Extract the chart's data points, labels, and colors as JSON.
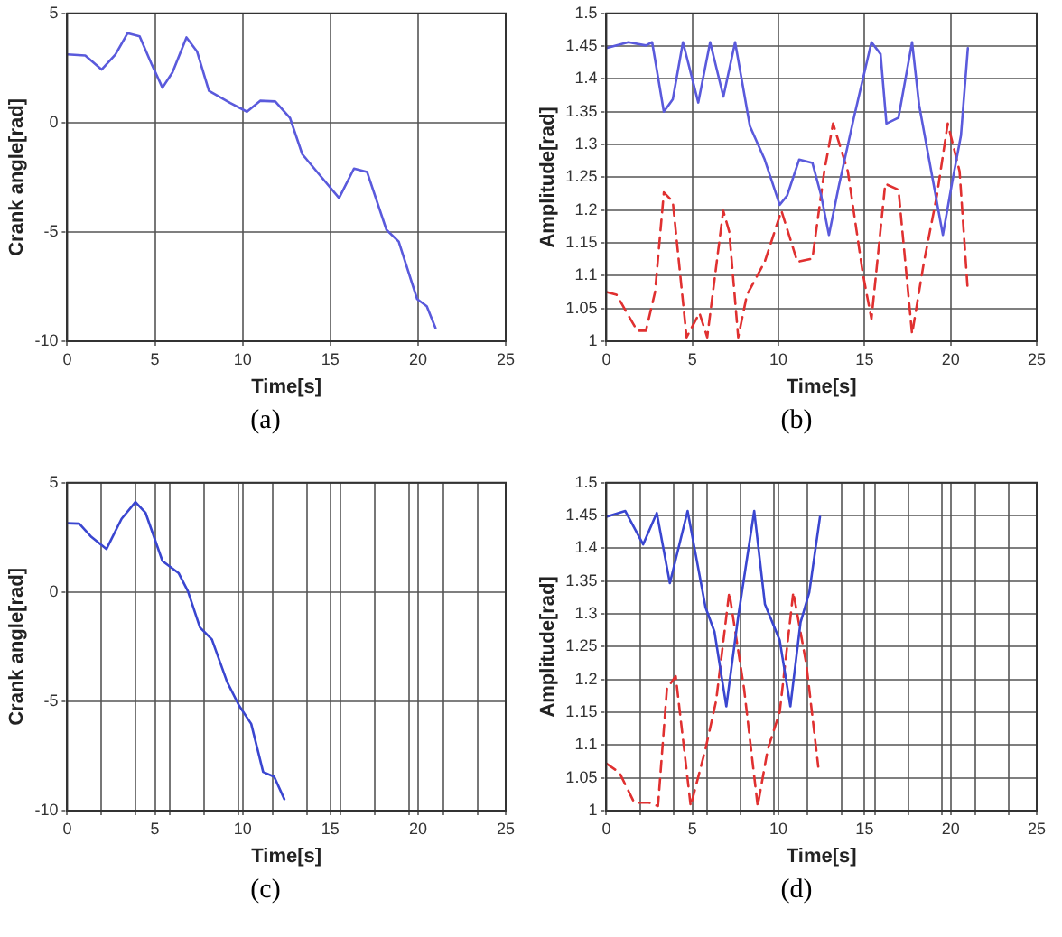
{
  "chart_data": [
    {
      "type": "line",
      "xlabel": "Time[s]",
      "ylabel": "Crank angle[rad]",
      "annotations": [
        "(a)"
      ],
      "xlim": [
        0,
        25
      ],
      "ylim": [
        -10,
        5
      ],
      "xticks": [
        0,
        5,
        10,
        15,
        20,
        25
      ],
      "yticks": [
        -10,
        -5,
        0,
        5
      ],
      "grid": true,
      "marker": "none",
      "line_style": "solid",
      "x": [
        0,
        1.03,
        1.96,
        2.75,
        3.44,
        4.13,
        4.8,
        5.43,
        6.0,
        6.8,
        7.4,
        8.08,
        9.3,
        10.25,
        11,
        11.86,
        12.7,
        13.4,
        14.4,
        15.5,
        16.35,
        17.1,
        18.2,
        18.9,
        19.95,
        20.5,
        21
      ],
      "series": [
        {
          "color": "#5a5adc",
          "values": [
            3.12,
            3.07,
            2.43,
            3.12,
            4.09,
            3.95,
            2.7,
            1.6,
            2.3,
            3.9,
            3.26,
            1.46,
            0.9,
            0.5,
            1.0,
            0.97,
            0.22,
            -1.44,
            -2.4,
            -3.45,
            -2.1,
            -2.26,
            -4.9,
            -5.44,
            -8.07,
            -8.4,
            -9.4
          ]
        }
      ]
    },
    {
      "type": "line",
      "xlabel": "Time[s]",
      "ylabel": "Amplitude[rad]",
      "annotations": [
        "(b)"
      ],
      "xlim": [
        0,
        25
      ],
      "ylim": [
        1,
        1.5
      ],
      "xticks": [
        0,
        5,
        10,
        15,
        20,
        25
      ],
      "yticks": [
        1,
        1.05,
        1.1,
        1.15,
        1.2,
        1.25,
        1.3,
        1.35,
        1.4,
        1.45,
        1.5
      ],
      "grid": true,
      "marker": "none",
      "series": [
        {
          "color": "#5a5adc",
          "line_style": "solid",
          "x": [
            0,
            1.28,
            2.3,
            2.66,
            3.34,
            3.86,
            4.45,
            5.34,
            6.03,
            6.8,
            7.48,
            8.34,
            9.2,
            10.07,
            10.5,
            11.2,
            11.97,
            12.48,
            12.93,
            13.5,
            14.38,
            15.4,
            15.93,
            16.27,
            16.97,
            17.76,
            18.17,
            19.55,
            20.07,
            20.6,
            21
          ],
          "values": [
            1.447,
            1.456,
            1.451,
            1.456,
            1.35,
            1.369,
            1.456,
            1.364,
            1.456,
            1.373,
            1.456,
            1.328,
            1.277,
            1.208,
            1.222,
            1.277,
            1.272,
            1.222,
            1.162,
            1.236,
            1.341,
            1.456,
            1.438,
            1.332,
            1.341,
            1.456,
            1.36,
            1.162,
            1.24,
            1.314,
            1.447
          ]
        },
        {
          "color": "#e03030",
          "line_style": "dashed",
          "x": [
            0,
            0.59,
            1.79,
            2.3,
            2.83,
            3.34,
            3.86,
            4.66,
            5.41,
            5.86,
            6.79,
            7.14,
            7.66,
            8.17,
            9.2,
            10.17,
            11.1,
            11.97,
            12.66,
            13.17,
            14.03,
            14.9,
            15.4,
            16.2,
            16.97,
            17.76,
            18.45,
            19.2,
            19.83,
            20.52,
            21
          ],
          "values": [
            1.075,
            1.071,
            1.016,
            1.016,
            1.075,
            1.227,
            1.213,
            1.006,
            1.043,
            1.006,
            1.199,
            1.167,
            1.006,
            1.071,
            1.121,
            1.199,
            1.121,
            1.126,
            1.259,
            1.332,
            1.259,
            1.103,
            1.034,
            1.24,
            1.231,
            1.011,
            1.121,
            1.222,
            1.332,
            1.259,
            1.075
          ]
        }
      ]
    },
    {
      "type": "line",
      "xlabel": "Time[s]",
      "ylabel": "Crank angle[rad]",
      "annotations": [
        "(c)"
      ],
      "xlim": [
        0,
        25
      ],
      "ylim": [
        -10,
        5
      ],
      "xticks": [
        0,
        {
          "value": 1.95,
          "label": null
        },
        {
          "value": 3.9,
          "label": null
        },
        5,
        {
          "value": 5.85,
          "label": null
        },
        {
          "value": 7.8,
          "label": null
        },
        {
          "value": 9.75,
          "label": null
        },
        10,
        {
          "value": 11.7,
          "label": null
        },
        {
          "value": 13.65,
          "label": null
        },
        15,
        {
          "value": 15.6,
          "label": null
        },
        {
          "value": 17.55,
          "label": null
        },
        {
          "value": 19.5,
          "label": null
        },
        20,
        {
          "value": 21.45,
          "label": null
        },
        {
          "value": 23.4,
          "label": null
        },
        25
      ],
      "yticks": [
        -10,
        -5,
        0,
        5
      ],
      "grid": true,
      "marker": "none",
      "line_style": "solid",
      "x": [
        0,
        0.69,
        1.38,
        2.24,
        3.1,
        3.89,
        4.47,
        5.43,
        6.36,
        6.88,
        7.57,
        8.25,
        9.11,
        9.8,
        10.49,
        11.17,
        11.8,
        12.38
      ],
      "series": [
        {
          "color": "#3a46d0",
          "values": [
            3.15,
            3.13,
            2.52,
            1.97,
            3.35,
            4.12,
            3.62,
            1.42,
            0.86,
            0.04,
            -1.62,
            -2.17,
            -4.1,
            -5.2,
            -6.03,
            -8.23,
            -8.45,
            -9.48
          ]
        }
      ]
    },
    {
      "type": "line",
      "xlabel": "Time[s]",
      "ylabel": "Amplitude[rad]",
      "annotations": [
        "(d)"
      ],
      "xlim": [
        0,
        25
      ],
      "ylim": [
        1,
        1.5
      ],
      "xticks": [
        0,
        {
          "value": 1.95,
          "label": null
        },
        {
          "value": 3.9,
          "label": null
        },
        5,
        {
          "value": 5.85,
          "label": null
        },
        {
          "value": 7.8,
          "label": null
        },
        {
          "value": 9.75,
          "label": null
        },
        10,
        {
          "value": 11.7,
          "label": null
        },
        {
          "value": 13.65,
          "label": null
        },
        15,
        {
          "value": 15.6,
          "label": null
        },
        {
          "value": 17.55,
          "label": null
        },
        {
          "value": 19.5,
          "label": null
        },
        20,
        {
          "value": 21.45,
          "label": null
        },
        {
          "value": 23.4,
          "label": null
        },
        25
      ],
      "yticks": [
        1,
        1.05,
        1.1,
        1.15,
        1.2,
        1.25,
        1.3,
        1.35,
        1.4,
        1.45,
        1.5
      ],
      "grid": true,
      "marker": "none",
      "series": [
        {
          "color": "#3a46d0",
          "line_style": "solid",
          "x": [
            0,
            1.1,
            2.14,
            2.93,
            3.69,
            4.72,
            5.76,
            6.28,
            6.97,
            7.66,
            8.59,
            9.21,
            10.07,
            10.69,
            11.28,
            11.79,
            12.41
          ],
          "values": [
            1.448,
            1.457,
            1.406,
            1.454,
            1.347,
            1.457,
            1.31,
            1.273,
            1.159,
            1.296,
            1.457,
            1.315,
            1.26,
            1.159,
            1.287,
            1.333,
            1.448
          ]
        },
        {
          "color": "#e03030",
          "line_style": "dashed",
          "x": [
            0,
            0.76,
            1.62,
            2.48,
            3,
            3.52,
            4.03,
            4.9,
            5.76,
            6.38,
            7.14,
            8,
            8.79,
            9.38,
            10.07,
            10.86,
            11.62,
            12.31
          ],
          "values": [
            1.072,
            1.058,
            1.012,
            1.012,
            1.007,
            1.186,
            1.205,
            1.007,
            1.094,
            1.168,
            1.333,
            1.186,
            1.007,
            1.094,
            1.15,
            1.333,
            1.223,
            1.067
          ]
        }
      ]
    }
  ]
}
